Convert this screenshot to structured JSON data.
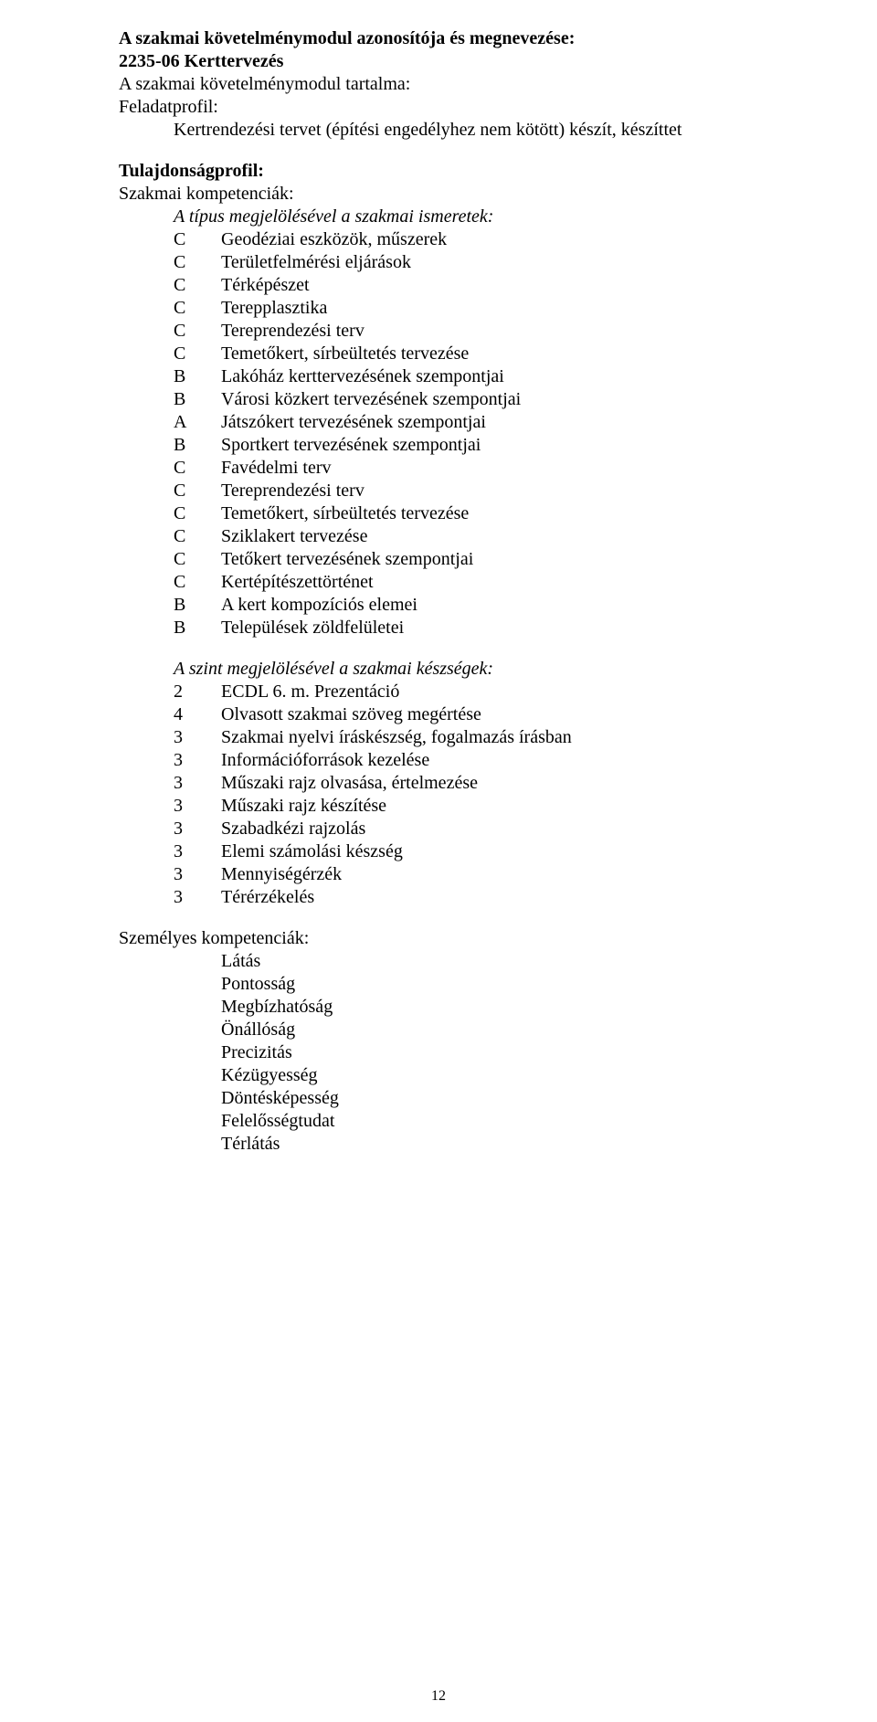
{
  "h1": "A szakmai követelménymodul azonosítója és megnevezése:",
  "h2": "2235-06  Kerttervezés",
  "h3": "A szakmai követelménymodul tartalma:",
  "h4": "Feladatprofil:",
  "feladat": "Kertrendezési tervet (építési engedélyhez nem kötött) készít, készíttet",
  "tulajHeading": "Tulajdonságprofil:",
  "szakmaiKomp": "Szakmai kompetenciák:",
  "ismeretekIntro": "A típus megjelölésével a szakmai ismeretek:",
  "ismeretek": [
    {
      "c": "C",
      "t": "Geodéziai eszközök, műszerek"
    },
    {
      "c": "C",
      "t": "Területfelmérési eljárások"
    },
    {
      "c": "C",
      "t": "Térképészet"
    },
    {
      "c": "C",
      "t": "Terepplasztika"
    },
    {
      "c": "C",
      "t": "Tereprendezési terv"
    },
    {
      "c": "C",
      "t": "Temetőkert, sírbeültetés tervezése"
    },
    {
      "c": "B",
      "t": "Lakóház kerttervezésének szempontjai"
    },
    {
      "c": "B",
      "t": "Városi közkert tervezésének szempontjai"
    },
    {
      "c": "A",
      "t": "Játszókert tervezésének szempontjai"
    },
    {
      "c": "B",
      "t": "Sportkert tervezésének szempontjai"
    },
    {
      "c": "C",
      "t": "Favédelmi terv"
    },
    {
      "c": "C",
      "t": "Tereprendezési terv"
    },
    {
      "c": "C",
      "t": "Temetőkert, sírbeültetés tervezése"
    },
    {
      "c": "C",
      "t": "Sziklakert tervezése"
    },
    {
      "c": "C",
      "t": "Tetőkert tervezésének szempontjai"
    },
    {
      "c": "C",
      "t": "Kertépítészettörténet"
    },
    {
      "c": "B",
      "t": "A kert kompozíciós elemei"
    },
    {
      "c": "B",
      "t": "Települések zöldfelületei"
    }
  ],
  "keszsegekIntro": "A szint megjelölésével a szakmai készségek:",
  "keszsegek": [
    {
      "c": "2",
      "t": "ECDL 6. m. Prezentáció"
    },
    {
      "c": "4",
      "t": "Olvasott szakmai szöveg megértése"
    },
    {
      "c": "3",
      "t": "Szakmai nyelvi íráskészség, fogalmazás írásban"
    },
    {
      "c": "3",
      "t": "Információforrások kezelése"
    },
    {
      "c": "3",
      "t": "Műszaki rajz olvasása, értelmezése"
    },
    {
      "c": "3",
      "t": "Műszaki rajz készítése"
    },
    {
      "c": "3",
      "t": "Szabadkézi rajzolás"
    },
    {
      "c": "3",
      "t": "Elemi számolási készség"
    },
    {
      "c": "3",
      "t": "Mennyiségérzék"
    },
    {
      "c": "3",
      "t": "Térérzékelés"
    }
  ],
  "personalHeading": "Személyes kompetenciák:",
  "personal": [
    "Látás",
    "Pontosság",
    "Megbízhatóság",
    "Önállóság",
    "Precizitás",
    "Kézügyesség",
    "Döntésképesség",
    "Felelősségtudat",
    "Térlátás"
  ],
  "pageNumber": "12"
}
